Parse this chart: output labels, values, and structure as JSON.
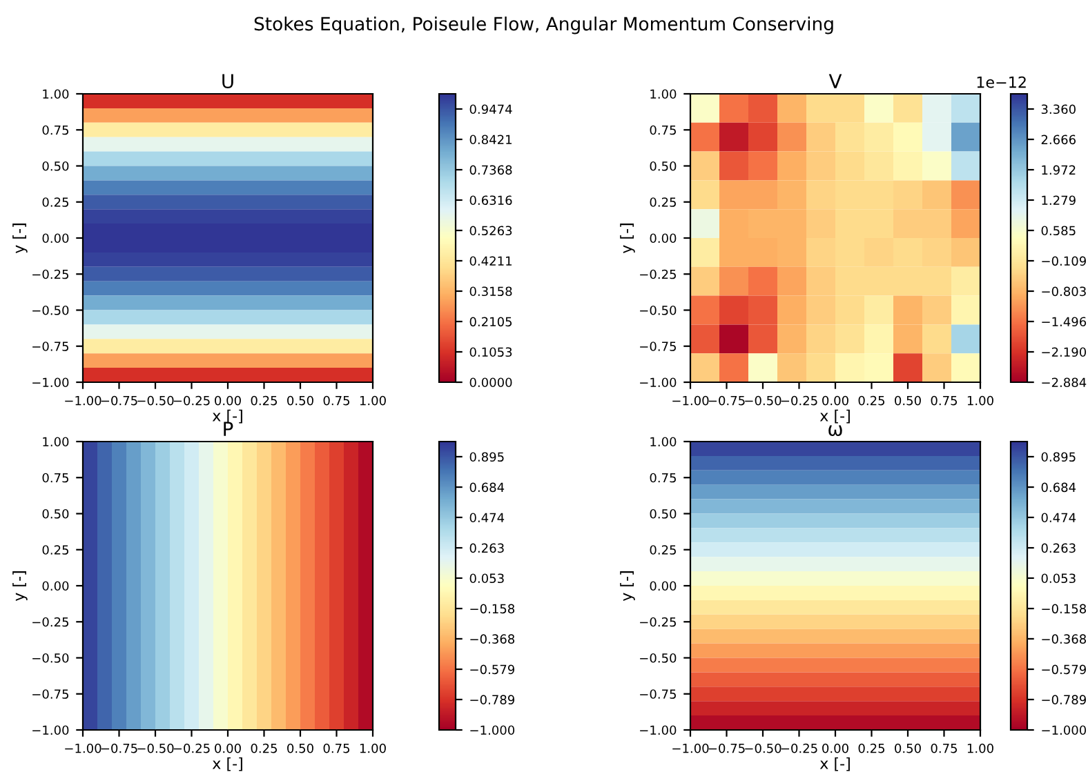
{
  "chart_data": [
    {
      "type": "heatmap",
      "title": "U",
      "xlabel": "x [-]",
      "ylabel": "y [-]",
      "annotations": [
        "Stokes Equation, Poiseule Flow, Angular Momentum Conserving"
      ],
      "xlim": [
        -1,
        1
      ],
      "ylim": [
        -1,
        1
      ],
      "xticks": [
        {
          "value": -1,
          "label": "−1.00"
        },
        {
          "value": -0.75,
          "label": "−0.75"
        },
        {
          "value": -0.5,
          "label": "−0.50"
        },
        {
          "value": -0.25,
          "label": "−0.25"
        },
        {
          "value": 0,
          "label": "0.00"
        },
        {
          "value": 0.25,
          "label": "0.25"
        },
        {
          "value": 0.5,
          "label": "0.50"
        },
        {
          "value": 0.75,
          "label": "0.75"
        },
        {
          "value": 1,
          "label": "1.00"
        }
      ],
      "yticks": [
        {
          "value": -1,
          "label": "−1.00"
        },
        {
          "value": -0.75,
          "label": "−0.75"
        },
        {
          "value": -0.5,
          "label": "−0.50"
        },
        {
          "value": -0.25,
          "label": "−0.25"
        },
        {
          "value": 0,
          "label": "0.00"
        },
        {
          "value": 0.25,
          "label": "0.25"
        },
        {
          "value": 0.5,
          "label": "0.50"
        },
        {
          "value": 0.75,
          "label": "0.75"
        },
        {
          "value": 1,
          "label": "1.00"
        }
      ],
      "clim": [
        0,
        1
      ],
      "cticks": [
        {
          "value": 0,
          "label": "0.0000"
        },
        {
          "value": 0.1053,
          "label": "0.1053"
        },
        {
          "value": 0.2105,
          "label": "0.2105"
        },
        {
          "value": 0.3158,
          "label": "0.3158"
        },
        {
          "value": 0.4211,
          "label": "0.4211"
        },
        {
          "value": 0.5263,
          "label": "0.5263"
        },
        {
          "value": 0.6316,
          "label": "0.6316"
        },
        {
          "value": 0.7368,
          "label": "0.7368"
        },
        {
          "value": 0.8421,
          "label": "0.8421"
        },
        {
          "value": 0.9474,
          "label": "0.9474"
        }
      ],
      "cells": [
        [
          0.1
        ],
        [
          0.28
        ],
        [
          0.44
        ],
        [
          0.58
        ],
        [
          0.7
        ],
        [
          0.8
        ],
        [
          0.88
        ],
        [
          0.94
        ],
        [
          0.98
        ],
        [
          1.0
        ],
        [
          1.0
        ],
        [
          0.98
        ],
        [
          0.94
        ],
        [
          0.88
        ],
        [
          0.8
        ],
        [
          0.7
        ],
        [
          0.58
        ],
        [
          0.44
        ],
        [
          0.28
        ],
        [
          0.1
        ]
      ]
    },
    {
      "type": "heatmap",
      "title": "V",
      "xlabel": "x [-]",
      "ylabel": "y [-]",
      "annotations": [
        "1e−12"
      ],
      "xlim": [
        -1,
        1
      ],
      "ylim": [
        -1,
        1
      ],
      "xticks": [
        {
          "value": -1,
          "label": "−1.00"
        },
        {
          "value": -0.75,
          "label": "−0.75"
        },
        {
          "value": -0.5,
          "label": "−0.50"
        },
        {
          "value": -0.25,
          "label": "−0.25"
        },
        {
          "value": 0,
          "label": "0.00"
        },
        {
          "value": 0.25,
          "label": "0.25"
        },
        {
          "value": 0.5,
          "label": "0.50"
        },
        {
          "value": 0.75,
          "label": "0.75"
        },
        {
          "value": 1,
          "label": "1.00"
        }
      ],
      "yticks": [
        {
          "value": -1,
          "label": "−1.00"
        },
        {
          "value": -0.75,
          "label": "−0.75"
        },
        {
          "value": -0.5,
          "label": "−0.50"
        },
        {
          "value": -0.25,
          "label": "−0.25"
        },
        {
          "value": 0,
          "label": "0.00"
        },
        {
          "value": 0.25,
          "label": "0.25"
        },
        {
          "value": 0.5,
          "label": "0.50"
        },
        {
          "value": 0.75,
          "label": "0.75"
        },
        {
          "value": 1,
          "label": "1.00"
        }
      ],
      "clim": [
        -2.884,
        3.707
      ],
      "cticks": [
        {
          "value": -2.884,
          "label": "−2.884"
        },
        {
          "value": -2.19,
          "label": "−2.190"
        },
        {
          "value": -1.496,
          "label": "−1.496"
        },
        {
          "value": -0.803,
          "label": "−0.803"
        },
        {
          "value": -0.109,
          "label": "−0.109"
        },
        {
          "value": 0.585,
          "label": "0.585"
        },
        {
          "value": 1.279,
          "label": "1.279"
        },
        {
          "value": 1.972,
          "label": "1.972"
        },
        {
          "value": 2.666,
          "label": "2.666"
        },
        {
          "value": 3.36,
          "label": "3.360"
        }
      ],
      "cells": [
        [
          0.5,
          -1.5,
          -1.8,
          -0.8,
          -0.3,
          -0.3,
          0.5,
          -0.2,
          1.0,
          1.5
        ],
        [
          -1.5,
          -2.5,
          -2.0,
          -1.2,
          -0.5,
          -0.2,
          0.0,
          0.3,
          1.0,
          2.5
        ],
        [
          -0.5,
          -1.8,
          -1.5,
          -0.9,
          -0.5,
          -0.3,
          -0.1,
          0.2,
          0.5,
          1.5
        ],
        [
          -0.3,
          -1.0,
          -1.0,
          -0.8,
          -0.4,
          -0.3,
          -0.3,
          -0.4,
          -0.6,
          -1.2
        ],
        [
          0.8,
          -0.9,
          -0.8,
          -0.8,
          -0.5,
          -0.3,
          -0.3,
          -0.5,
          -0.5,
          -1.0
        ],
        [
          0.0,
          -0.9,
          -0.9,
          -0.8,
          -0.4,
          -0.3,
          -0.4,
          -0.3,
          -0.4,
          -0.6
        ],
        [
          -0.5,
          -1.2,
          -1.5,
          -1.0,
          -0.5,
          -0.3,
          -0.3,
          -0.3,
          -0.3,
          0.0
        ],
        [
          -1.5,
          -2.0,
          -1.8,
          -0.9,
          -0.5,
          -0.3,
          0.0,
          -0.8,
          -0.5,
          0.2
        ],
        [
          -1.8,
          -2.8,
          -1.8,
          -0.8,
          -0.4,
          -0.2,
          0.2,
          -0.8,
          -0.3,
          1.8
        ],
        [
          -0.5,
          -1.5,
          0.5,
          -0.6,
          -0.3,
          0.2,
          0.3,
          -2.0,
          -0.5,
          0.3
        ]
      ]
    },
    {
      "type": "heatmap",
      "title": "P",
      "xlabel": "x [-]",
      "ylabel": "y [-]",
      "xlim": [
        -1,
        1
      ],
      "ylim": [
        -1,
        1
      ],
      "xticks": [
        {
          "value": -1,
          "label": "−1.00"
        },
        {
          "value": -0.75,
          "label": "−0.75"
        },
        {
          "value": -0.5,
          "label": "−0.50"
        },
        {
          "value": -0.25,
          "label": "−0.25"
        },
        {
          "value": 0,
          "label": "0.00"
        },
        {
          "value": 0.25,
          "label": "0.25"
        },
        {
          "value": 0.5,
          "label": "0.50"
        },
        {
          "value": 0.75,
          "label": "0.75"
        },
        {
          "value": 1,
          "label": "1.00"
        }
      ],
      "yticks": [
        {
          "value": -1,
          "label": "−1.00"
        },
        {
          "value": -0.75,
          "label": "−0.75"
        },
        {
          "value": -0.5,
          "label": "−0.50"
        },
        {
          "value": -0.25,
          "label": "−0.25"
        },
        {
          "value": 0,
          "label": "0.00"
        },
        {
          "value": 0.25,
          "label": "0.25"
        },
        {
          "value": 0.5,
          "label": "0.50"
        },
        {
          "value": 0.75,
          "label": "0.75"
        },
        {
          "value": 1,
          "label": "1.00"
        }
      ],
      "clim": [
        -1,
        1
      ],
      "cticks": [
        {
          "value": -1,
          "label": "−1.000"
        },
        {
          "value": -0.789,
          "label": "−0.789"
        },
        {
          "value": -0.579,
          "label": "−0.579"
        },
        {
          "value": -0.368,
          "label": "−0.368"
        },
        {
          "value": -0.158,
          "label": "−0.158"
        },
        {
          "value": 0.053,
          "label": "0.053"
        },
        {
          "value": 0.263,
          "label": "0.263"
        },
        {
          "value": 0.474,
          "label": "0.474"
        },
        {
          "value": 0.684,
          "label": "0.684"
        },
        {
          "value": 0.895,
          "label": "0.895"
        }
      ],
      "cells": [
        [
          0.95,
          0.85,
          0.75,
          0.65,
          0.55,
          0.45,
          0.35,
          0.25,
          0.15,
          0.05,
          -0.05,
          -0.15,
          -0.25,
          -0.35,
          -0.45,
          -0.55,
          -0.65,
          -0.75,
          -0.85,
          -0.95
        ]
      ]
    },
    {
      "type": "heatmap",
      "title": "ω",
      "xlabel": "x [-]",
      "ylabel": "y [-]",
      "xlim": [
        -1,
        1
      ],
      "ylim": [
        -1,
        1
      ],
      "xticks": [
        {
          "value": -1,
          "label": "−1.00"
        },
        {
          "value": -0.75,
          "label": "−0.75"
        },
        {
          "value": -0.5,
          "label": "−0.50"
        },
        {
          "value": -0.25,
          "label": "−0.25"
        },
        {
          "value": 0,
          "label": "0.00"
        },
        {
          "value": 0.25,
          "label": "0.25"
        },
        {
          "value": 0.5,
          "label": "0.50"
        },
        {
          "value": 0.75,
          "label": "0.75"
        },
        {
          "value": 1,
          "label": "1.00"
        }
      ],
      "yticks": [
        {
          "value": -1,
          "label": "−1.00"
        },
        {
          "value": -0.75,
          "label": "−0.75"
        },
        {
          "value": -0.5,
          "label": "−0.50"
        },
        {
          "value": -0.25,
          "label": "−0.25"
        },
        {
          "value": 0,
          "label": "0.00"
        },
        {
          "value": 0.25,
          "label": "0.25"
        },
        {
          "value": 0.5,
          "label": "0.50"
        },
        {
          "value": 0.75,
          "label": "0.75"
        },
        {
          "value": 1,
          "label": "1.00"
        }
      ],
      "clim": [
        -1,
        1
      ],
      "cticks": [
        {
          "value": -1,
          "label": "−1.000"
        },
        {
          "value": -0.789,
          "label": "−0.789"
        },
        {
          "value": -0.579,
          "label": "−0.579"
        },
        {
          "value": -0.368,
          "label": "−0.368"
        },
        {
          "value": -0.158,
          "label": "−0.158"
        },
        {
          "value": 0.053,
          "label": "0.053"
        },
        {
          "value": 0.263,
          "label": "0.263"
        },
        {
          "value": 0.474,
          "label": "0.474"
        },
        {
          "value": 0.684,
          "label": "0.684"
        },
        {
          "value": 0.895,
          "label": "0.895"
        }
      ],
      "cells": [
        [
          0.95
        ],
        [
          0.85
        ],
        [
          0.75
        ],
        [
          0.65
        ],
        [
          0.55
        ],
        [
          0.45
        ],
        [
          0.35
        ],
        [
          0.25
        ],
        [
          0.15
        ],
        [
          0.05
        ],
        [
          -0.05
        ],
        [
          -0.15
        ],
        [
          -0.25
        ],
        [
          -0.35
        ],
        [
          -0.45
        ],
        [
          -0.55
        ],
        [
          -0.65
        ],
        [
          -0.75
        ],
        [
          -0.85
        ],
        [
          -0.95
        ]
      ]
    }
  ]
}
